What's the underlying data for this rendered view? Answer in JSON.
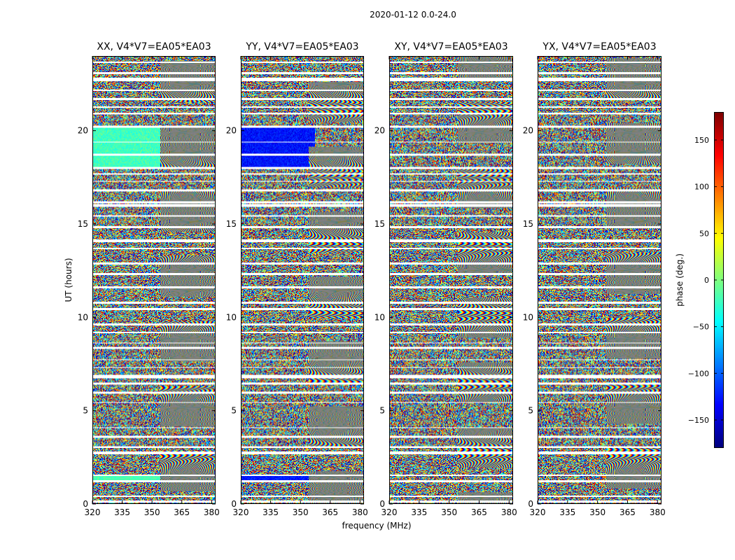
{
  "figure": {
    "title": "2020-01-12 0.0-24.0"
  },
  "colors": {
    "colormap": "jet",
    "flagged": "#ffffff"
  },
  "chart_data": {
    "type": "heatmap",
    "title": "2020-01-12 0.0-24.0",
    "xlabel": "frequency (MHz)",
    "ylabel": "UT (hours)",
    "xlim": [
      320,
      382
    ],
    "ylim": [
      0,
      24
    ],
    "x_ticks": [
      320,
      335,
      350,
      365,
      380
    ],
    "y_ticks": [
      0,
      5,
      10,
      15,
      20
    ],
    "colorbar": {
      "label": "phase (deg.)",
      "range": [
        -180,
        180
      ],
      "ticks": [
        150,
        100,
        50,
        0,
        -50,
        -100,
        -150
      ],
      "tick_labels": [
        "150",
        "100",
        "50",
        "0",
        "−50",
        "−100",
        "−150"
      ]
    },
    "panels": [
      {
        "title": "XX, V4*V7=EA05*EA03",
        "pol": "XX"
      },
      {
        "title": "YY, V4*V7=EA05*EA03",
        "pol": "YY"
      },
      {
        "title": "XY, V4*V7=EA05*EA03",
        "pol": "XY"
      },
      {
        "title": "YX, V4*V7=EA05*EA03",
        "pol": "YX"
      }
    ],
    "flagged_ut_ranges": [
      [
        0.05,
        0.15
      ],
      [
        0.35,
        0.42
      ],
      [
        1.15,
        1.25
      ],
      [
        1.5,
        1.55
      ],
      [
        2.65,
        2.8
      ],
      [
        3.0,
        3.1
      ],
      [
        3.55,
        3.65
      ],
      [
        4.05,
        4.1
      ],
      [
        5.4,
        5.45
      ],
      [
        5.9,
        6.0
      ],
      [
        6.4,
        6.5
      ],
      [
        6.75,
        6.9
      ],
      [
        7.3,
        7.35
      ],
      [
        7.7,
        7.75
      ],
      [
        8.3,
        8.4
      ],
      [
        8.6,
        8.65
      ],
      [
        9.15,
        9.25
      ],
      [
        9.6,
        9.7
      ],
      [
        10.4,
        10.5
      ],
      [
        10.75,
        10.85
      ],
      [
        11.55,
        11.7
      ],
      [
        12.3,
        12.4
      ],
      [
        12.85,
        12.95
      ],
      [
        13.65,
        13.75
      ],
      [
        14.05,
        14.2
      ],
      [
        14.8,
        14.9
      ],
      [
        15.45,
        15.5
      ],
      [
        15.95,
        16.1
      ],
      [
        16.15,
        16.25
      ],
      [
        16.8,
        16.9
      ],
      [
        17.3,
        17.35
      ],
      [
        17.7,
        17.75
      ],
      [
        18.0,
        18.1
      ],
      [
        18.7,
        18.8
      ],
      [
        19.4,
        19.45
      ],
      [
        20.2,
        20.3
      ],
      [
        20.9,
        21.0
      ],
      [
        21.3,
        21.35
      ],
      [
        21.7,
        21.8
      ],
      [
        22.2,
        22.25
      ],
      [
        22.7,
        22.9
      ],
      [
        23.1,
        23.2
      ],
      [
        23.7,
        23.75
      ]
    ]
  }
}
